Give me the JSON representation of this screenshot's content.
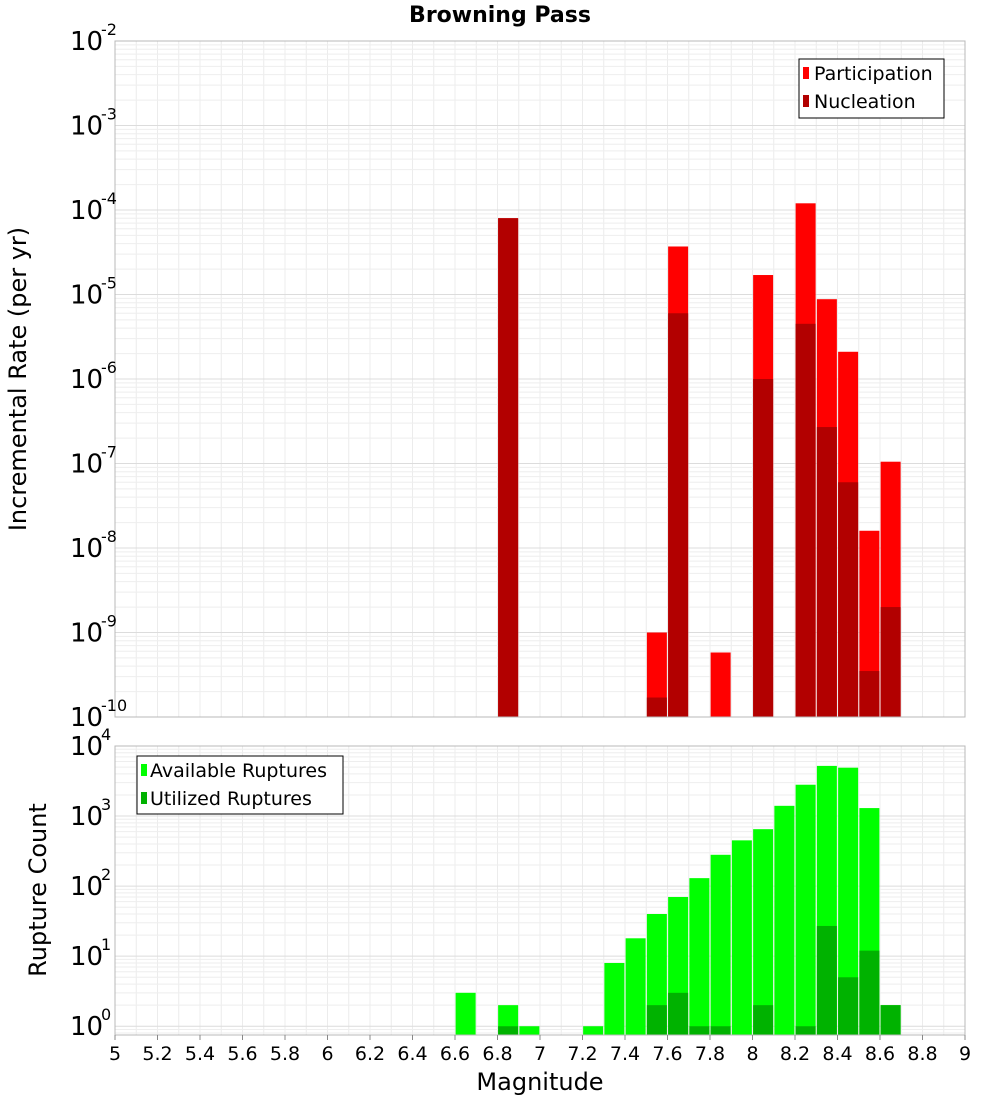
{
  "chart_data": [
    {
      "type": "bar",
      "title": "Browning Pass",
      "ylabel": "Incremental Rate (per yr)",
      "xlabel": "",
      "y_scale": "log",
      "ylim": [
        1e-10,
        0.01
      ],
      "xlim": [
        5,
        9
      ],
      "y_tick_mantissa": "10",
      "y_tick_exponents": [
        "-10",
        "-9",
        "-8",
        "-7",
        "-6",
        "-5",
        "-4",
        "-3",
        "-2"
      ],
      "grid": true,
      "legend_position": "top-right",
      "colors": {
        "participation": "#ff0000",
        "nucleation": "#b20000"
      },
      "x": [
        6.85,
        7.55,
        7.65,
        7.85,
        8.05,
        8.25,
        8.35,
        8.45,
        8.55,
        8.65
      ],
      "series": [
        {
          "name": "Participation",
          "values": [
            8e-05,
            1e-09,
            3.7e-05,
            5.8e-10,
            1.7e-05,
            0.00012,
            8.8e-06,
            2.1e-06,
            1.6e-08,
            1.05e-07
          ]
        },
        {
          "name": "Nucleation",
          "values": [
            8e-05,
            1.7e-10,
            6e-06,
            null,
            1e-06,
            4.5e-06,
            2.7e-07,
            6e-08,
            3.5e-10,
            2e-09
          ]
        }
      ]
    },
    {
      "type": "bar",
      "title": "",
      "ylabel": "Rupture Count",
      "xlabel": "Magnitude",
      "y_scale": "log",
      "ylim": [
        0.75,
        10000
      ],
      "xlim": [
        5,
        9
      ],
      "y_tick_mantissa": "10",
      "y_tick_exponents": [
        "0",
        "1",
        "2",
        "3",
        "4"
      ],
      "x_ticks": [
        "5",
        "5.2",
        "5.4",
        "5.6",
        "5.8",
        "6",
        "6.2",
        "6.4",
        "6.6",
        "6.8",
        "7",
        "7.2",
        "7.4",
        "7.6",
        "7.8",
        "8",
        "8.2",
        "8.4",
        "8.6",
        "8.8",
        "9"
      ],
      "grid": true,
      "legend_position": "top-left",
      "colors": {
        "available": "#00ff00",
        "utilized": "#00b200"
      },
      "x": [
        6.65,
        6.85,
        6.95,
        7.25,
        7.35,
        7.45,
        7.55,
        7.65,
        7.75,
        7.85,
        7.95,
        8.05,
        8.15,
        8.25,
        8.35,
        8.45,
        8.55,
        8.65
      ],
      "series": [
        {
          "name": "Available Ruptures",
          "values": [
            3,
            2,
            1,
            1,
            8,
            18,
            40,
            70,
            130,
            280,
            450,
            650,
            1400,
            2800,
            5200,
            4900,
            1300,
            2
          ]
        },
        {
          "name": "Utilized Ruptures",
          "values": [
            null,
            1,
            null,
            null,
            null,
            null,
            2,
            3,
            1,
            1,
            null,
            2,
            null,
            1,
            27,
            5,
            12,
            2
          ]
        }
      ]
    }
  ]
}
